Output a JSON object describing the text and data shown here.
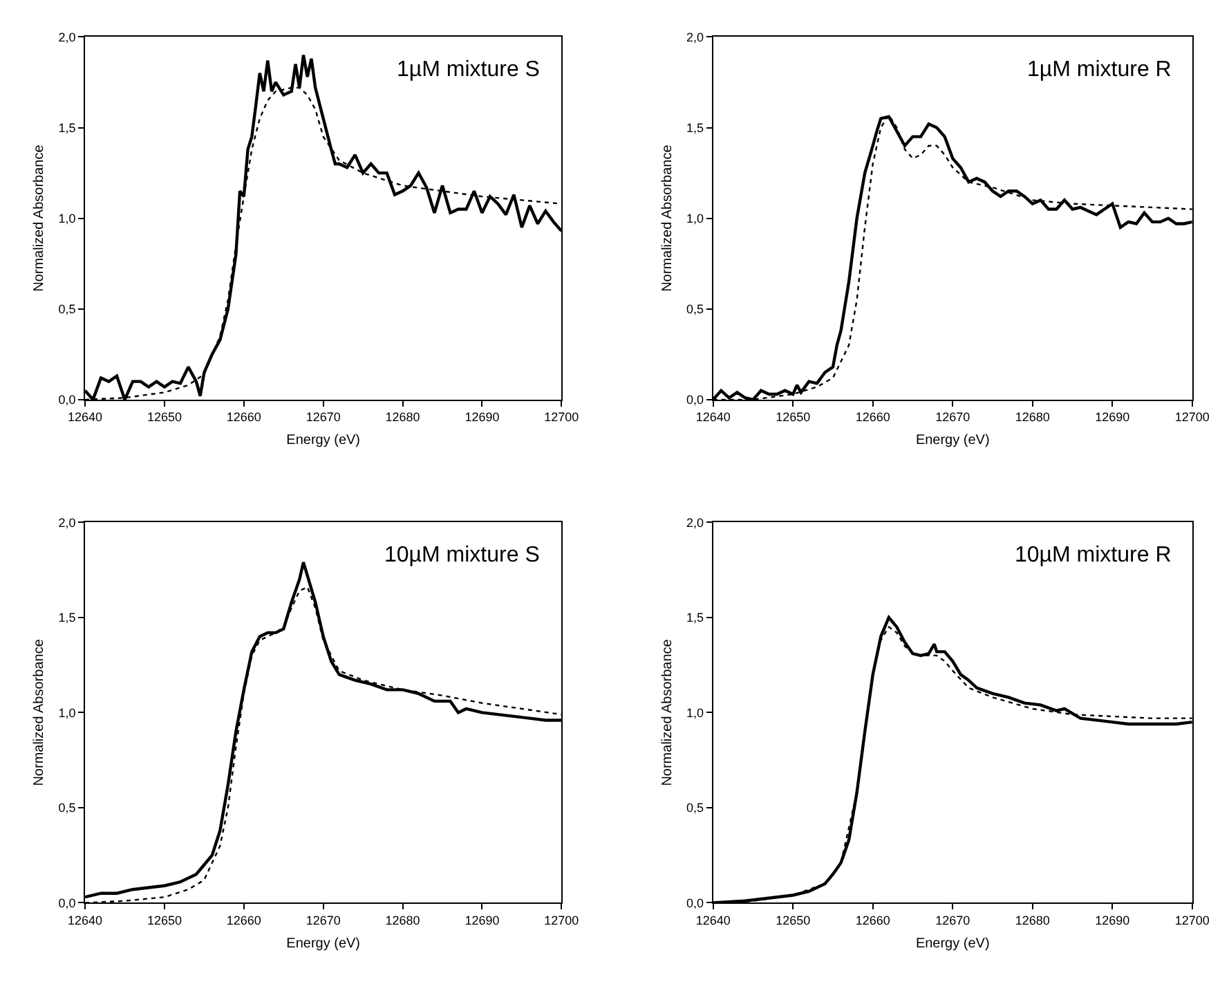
{
  "chart_data": [
    {
      "type": "line",
      "title": "1µM mixture S",
      "xlabel": "Energy (eV)",
      "ylabel": "Normalized Absorbance",
      "xlim": [
        12640,
        12700
      ],
      "xticks": [
        12640,
        12650,
        12660,
        12670,
        12680,
        12690,
        12700
      ],
      "ylim": [
        0,
        2
      ],
      "yticks": [
        {
          "value": 0,
          "label": "0,0"
        },
        {
          "value": 0.5,
          "label": "0,5"
        },
        {
          "value": 1,
          "label": "1,0"
        },
        {
          "value": 1.5,
          "label": "1,5"
        },
        {
          "value": 2,
          "label": "2,0"
        }
      ],
      "marker": "none",
      "series": [
        {
          "color": "#000000",
          "line_style": "solid",
          "x": [
            12640,
            12641,
            12642,
            12643,
            12644,
            12645,
            12646,
            12647,
            12648,
            12649,
            12650,
            12651,
            12652,
            12653,
            12654,
            12654.5,
            12655,
            12656,
            12657,
            12658,
            12659,
            12659.5,
            12660,
            12660.5,
            12661,
            12661.5,
            12662,
            12662.5,
            12663,
            12663.5,
            12664,
            12665,
            12666,
            12666.5,
            12667,
            12667.5,
            12668,
            12668.5,
            12669,
            12670,
            12671,
            12671.5,
            12672,
            12673,
            12674,
            12675,
            12676,
            12677,
            12678,
            12679,
            12680,
            12681,
            12682,
            12683,
            12684,
            12685,
            12686,
            12687,
            12688,
            12689,
            12690,
            12691,
            12692,
            12693,
            12694,
            12695,
            12696,
            12697,
            12698,
            12699,
            12700
          ],
          "values": [
            0.05,
            0.0,
            0.12,
            0.1,
            0.13,
            0.0,
            0.1,
            0.1,
            0.07,
            0.1,
            0.07,
            0.1,
            0.09,
            0.18,
            0.1,
            0.02,
            0.15,
            0.25,
            0.33,
            0.5,
            0.8,
            1.15,
            1.12,
            1.38,
            1.45,
            1.62,
            1.8,
            1.7,
            1.87,
            1.7,
            1.75,
            1.68,
            1.7,
            1.85,
            1.72,
            1.9,
            1.78,
            1.88,
            1.72,
            1.55,
            1.38,
            1.3,
            1.3,
            1.28,
            1.35,
            1.25,
            1.3,
            1.25,
            1.25,
            1.13,
            1.15,
            1.18,
            1.25,
            1.17,
            1.03,
            1.18,
            1.03,
            1.05,
            1.05,
            1.15,
            1.03,
            1.12,
            1.08,
            1.02,
            1.13,
            0.95,
            1.07,
            0.97,
            1.04,
            0.98,
            0.93
          ]
        },
        {
          "color": "#000000",
          "line_style": "dotted",
          "x": [
            12640,
            12645,
            12650,
            12653,
            12655,
            12657,
            12658,
            12659,
            12660,
            12661,
            12662,
            12663,
            12664,
            12666,
            12667,
            12668,
            12669,
            12670,
            12672,
            12675,
            12680,
            12685,
            12690,
            12695,
            12700
          ],
          "values": [
            0.0,
            0.01,
            0.04,
            0.08,
            0.14,
            0.35,
            0.55,
            0.85,
            1.12,
            1.38,
            1.55,
            1.65,
            1.7,
            1.72,
            1.72,
            1.68,
            1.6,
            1.45,
            1.32,
            1.25,
            1.18,
            1.15,
            1.12,
            1.1,
            1.08
          ]
        }
      ]
    },
    {
      "type": "line",
      "title": "1µM mixture R",
      "xlabel": "Energy (eV)",
      "ylabel": "Normalized Absorbance",
      "xlim": [
        12640,
        12700
      ],
      "xticks": [
        12640,
        12650,
        12660,
        12670,
        12680,
        12690,
        12700
      ],
      "ylim": [
        0,
        2
      ],
      "yticks": [
        {
          "value": 0,
          "label": "0,0"
        },
        {
          "value": 0.5,
          "label": "0,5"
        },
        {
          "value": 1,
          "label": "1,0"
        },
        {
          "value": 1.5,
          "label": "1,5"
        },
        {
          "value": 2,
          "label": "2,0"
        }
      ],
      "marker": "none",
      "series": [
        {
          "color": "#000000",
          "line_style": "solid",
          "x": [
            12640,
            12641,
            12642,
            12643,
            12644,
            12645,
            12646,
            12647,
            12648,
            12649,
            12650,
            12650.5,
            12651,
            12652,
            12653,
            12654,
            12655,
            12655.5,
            12656,
            12657,
            12658,
            12659,
            12660,
            12660.5,
            12661,
            12662,
            12663,
            12664,
            12665,
            12666,
            12667,
            12668,
            12669,
            12670,
            12671,
            12672,
            12673,
            12674,
            12675,
            12676,
            12677,
            12678,
            12679,
            12680,
            12681,
            12682,
            12683,
            12684,
            12685,
            12686,
            12687,
            12688,
            12689,
            12690,
            12691,
            12692,
            12693,
            12694,
            12695,
            12696,
            12697,
            12698,
            12699,
            12700
          ],
          "values": [
            0.0,
            0.05,
            0.01,
            0.04,
            0.01,
            0.0,
            0.05,
            0.03,
            0.03,
            0.05,
            0.03,
            0.08,
            0.04,
            0.1,
            0.09,
            0.15,
            0.18,
            0.3,
            0.38,
            0.65,
            1.0,
            1.25,
            1.4,
            1.48,
            1.55,
            1.56,
            1.48,
            1.4,
            1.45,
            1.45,
            1.52,
            1.5,
            1.45,
            1.33,
            1.28,
            1.2,
            1.22,
            1.2,
            1.15,
            1.12,
            1.15,
            1.15,
            1.12,
            1.08,
            1.1,
            1.05,
            1.05,
            1.1,
            1.05,
            1.06,
            1.04,
            1.02,
            1.05,
            1.08,
            0.95,
            0.98,
            0.97,
            1.03,
            0.98,
            0.98,
            1.0,
            0.97,
            0.97,
            0.98
          ]
        },
        {
          "color": "#000000",
          "line_style": "dotted",
          "x": [
            12640,
            12645,
            12650,
            12653,
            12655,
            12657,
            12658,
            12659,
            12660,
            12661,
            12662,
            12663,
            12664,
            12665,
            12666,
            12667,
            12668,
            12669,
            12670,
            12672,
            12675,
            12680,
            12685,
            12690,
            12695,
            12700
          ],
          "values": [
            0.0,
            0.0,
            0.03,
            0.07,
            0.12,
            0.3,
            0.55,
            0.95,
            1.3,
            1.5,
            1.57,
            1.5,
            1.38,
            1.33,
            1.35,
            1.4,
            1.4,
            1.35,
            1.28,
            1.2,
            1.17,
            1.1,
            1.08,
            1.07,
            1.06,
            1.05
          ]
        }
      ]
    },
    {
      "type": "line",
      "title": "10µM mixture S",
      "xlabel": "Energy (eV)",
      "ylabel": "Normalized Absorbance",
      "xlim": [
        12640,
        12700
      ],
      "xticks": [
        12640,
        12650,
        12660,
        12670,
        12680,
        12690,
        12700
      ],
      "ylim": [
        0,
        2
      ],
      "yticks": [
        {
          "value": 0,
          "label": "0,0"
        },
        {
          "value": 0.5,
          "label": "0,5"
        },
        {
          "value": 1,
          "label": "1,0"
        },
        {
          "value": 1.5,
          "label": "1,5"
        },
        {
          "value": 2,
          "label": "2,0"
        }
      ],
      "marker": "none",
      "series": [
        {
          "color": "#000000",
          "line_style": "solid",
          "x": [
            12640,
            12642,
            12644,
            12646,
            12648,
            12650,
            12652,
            12654,
            12655,
            12656,
            12657,
            12658,
            12659,
            12660,
            12661,
            12662,
            12663,
            12664,
            12665,
            12666,
            12667,
            12667.5,
            12668,
            12669,
            12670,
            12671,
            12672,
            12674,
            12676,
            12678,
            12680,
            12682,
            12684,
            12686,
            12687,
            12688,
            12690,
            12692,
            12694,
            12696,
            12698,
            12700
          ],
          "values": [
            0.03,
            0.05,
            0.05,
            0.07,
            0.08,
            0.09,
            0.11,
            0.15,
            0.2,
            0.25,
            0.38,
            0.62,
            0.9,
            1.12,
            1.32,
            1.4,
            1.42,
            1.42,
            1.44,
            1.58,
            1.7,
            1.79,
            1.72,
            1.58,
            1.4,
            1.27,
            1.2,
            1.17,
            1.15,
            1.12,
            1.12,
            1.1,
            1.06,
            1.06,
            1.0,
            1.02,
            1.0,
            0.99,
            0.98,
            0.97,
            0.96,
            0.96
          ]
        },
        {
          "color": "#000000",
          "line_style": "dotted",
          "x": [
            12640,
            12645,
            12650,
            12653,
            12655,
            12657,
            12658,
            12659,
            12660,
            12661,
            12662,
            12664,
            12665,
            12666,
            12667,
            12668,
            12669,
            12670,
            12672,
            12675,
            12680,
            12685,
            12690,
            12695,
            12700
          ],
          "values": [
            0.0,
            0.01,
            0.03,
            0.07,
            0.12,
            0.3,
            0.5,
            0.82,
            1.1,
            1.3,
            1.38,
            1.42,
            1.45,
            1.55,
            1.64,
            1.66,
            1.55,
            1.38,
            1.22,
            1.17,
            1.12,
            1.09,
            1.05,
            1.02,
            0.99
          ]
        }
      ]
    },
    {
      "type": "line",
      "title": "10µM mixture R",
      "xlabel": "Energy (eV)",
      "ylabel": "Normalized Absorbance",
      "xlim": [
        12640,
        12700
      ],
      "xticks": [
        12640,
        12650,
        12660,
        12670,
        12680,
        12690,
        12700
      ],
      "ylim": [
        0,
        2
      ],
      "yticks": [
        {
          "value": 0,
          "label": "0,0"
        },
        {
          "value": 0.5,
          "label": "0,5"
        },
        {
          "value": 1,
          "label": "1,0"
        },
        {
          "value": 1.5,
          "label": "1,5"
        },
        {
          "value": 2,
          "label": "2,0"
        }
      ],
      "marker": "none",
      "series": [
        {
          "color": "#000000",
          "line_style": "solid",
          "x": [
            12640,
            12644,
            12646,
            12648,
            12650,
            12652,
            12654,
            12655,
            12656,
            12657,
            12658,
            12659,
            12660,
            12661,
            12662,
            12663,
            12664,
            12665,
            12666,
            12667,
            12667.7,
            12668,
            12669,
            12670,
            12671,
            12672,
            12673,
            12675,
            12677,
            12679,
            12681,
            12683,
            12684,
            12686,
            12688,
            12690,
            12692,
            12694,
            12696,
            12698,
            12700
          ],
          "values": [
            0.0,
            0.01,
            0.02,
            0.03,
            0.04,
            0.06,
            0.1,
            0.15,
            0.21,
            0.33,
            0.58,
            0.9,
            1.2,
            1.4,
            1.5,
            1.45,
            1.37,
            1.31,
            1.3,
            1.31,
            1.36,
            1.32,
            1.32,
            1.27,
            1.2,
            1.17,
            1.13,
            1.1,
            1.08,
            1.05,
            1.04,
            1.01,
            1.02,
            0.97,
            0.96,
            0.95,
            0.94,
            0.94,
            0.94,
            0.94,
            0.95
          ]
        },
        {
          "color": "#000000",
          "line_style": "dotted",
          "x": [
            12640,
            12645,
            12650,
            12654,
            12656,
            12658,
            12660,
            12661,
            12662,
            12663,
            12664,
            12665,
            12666,
            12667,
            12668,
            12669,
            12670,
            12672,
            12675,
            12680,
            12685,
            12690,
            12695,
            12700
          ],
          "values": [
            0.0,
            0.01,
            0.04,
            0.1,
            0.21,
            0.58,
            1.2,
            1.38,
            1.45,
            1.42,
            1.35,
            1.31,
            1.3,
            1.3,
            1.3,
            1.27,
            1.22,
            1.13,
            1.08,
            1.02,
            0.99,
            0.98,
            0.97,
            0.97
          ]
        }
      ]
    }
  ]
}
